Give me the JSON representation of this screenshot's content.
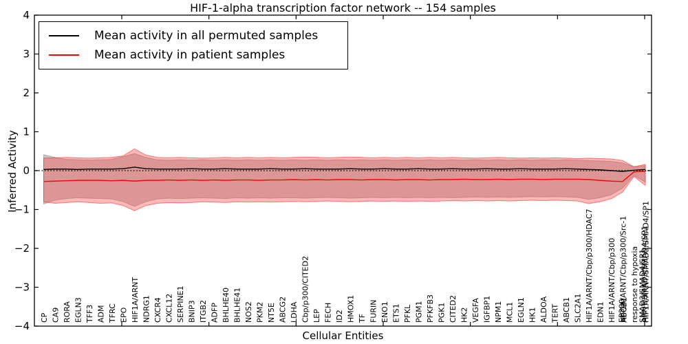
{
  "header": {
    "title": "HIF-1-alpha transcription factor network -- 154 samples"
  },
  "axes": {
    "ylabel": "Inferred Activity",
    "xlabel": "Cellular Entities",
    "y_tick_labels": [
      "4",
      "3",
      "2",
      "1",
      "0",
      "−1",
      "−2",
      "−3",
      "−4"
    ],
    "y_tick_values": [
      4,
      3,
      2,
      1,
      0,
      -1,
      -2,
      -3,
      -4
    ]
  },
  "legend": {
    "items": [
      {
        "label": "Mean activity in all permuted samples",
        "color": "#000000"
      },
      {
        "label": "Mean activity in patient samples",
        "color": "#ff0000"
      }
    ]
  },
  "chart_data": {
    "type": "line",
    "title": "HIF-1-alpha transcription factor network -- 154 samples",
    "xlabel": "Cellular Entities",
    "ylabel": "Inferred Activity",
    "ylim": [
      -4,
      4
    ],
    "zero_reference_line": true,
    "grid": false,
    "legend_position": "upper left",
    "categories": [
      "CP",
      "CA9",
      "RORA",
      "EGLN3",
      "TFF3",
      "ADM",
      "TFRC",
      "EPO",
      "HIF1A/ARNT",
      "NDRG1",
      "CXCR4",
      "CXCL12",
      "SERPINE1",
      "BNIP3",
      "ITGB2",
      "ADFP",
      "BHLHE40",
      "BHLHE41",
      "NOS2",
      "PKM2",
      "NT5E",
      "ABCG2",
      "LDHA",
      "Cbp/p300/CITED2",
      "LEP",
      "FECH",
      "ID2",
      "HMOX1",
      "TF",
      "FURIN",
      "ENO1",
      "ETS1",
      "PFKL",
      "PGM1",
      "PFKFB3",
      "PGK1",
      "CITED2",
      "HK2",
      "VEGFA",
      "IGFBP1",
      "NPM1",
      "MCL1",
      "EGLN1",
      "HK1",
      "ALDOA",
      "TERT",
      "ABCB1",
      "SLC2A1",
      "HIF1A/ARNT/Cbp/p300/HDAC7",
      "EDN1",
      "HIF1A/ARNT/Cbp/p300",
      "HIF1A/ARNT/Cbp/p300/Src-1",
      "response to hypoxia",
      "HIF1A/ARNT/SMAD3/SMAD4/SP1"
    ],
    "overprint_labels": [
      {
        "index": 51,
        "dx": -2,
        "labels": [
          "EP300",
          "ABCB1"
        ]
      },
      {
        "index": 53,
        "dx": -5,
        "labels": [
          "SMAD3/SMAD4/SP1",
          "ARNT/SMAD3/SMAD4/SP1"
        ]
      }
    ],
    "series": [
      {
        "name": "Mean activity in all permuted samples",
        "color": "#000000",
        "values": [
          0.03,
          0.04,
          0.04,
          0.03,
          0.04,
          0.04,
          0.04,
          0.05,
          0.09,
          0.05,
          0.04,
          0.04,
          0.04,
          0.05,
          0.04,
          0.04,
          0.05,
          0.04,
          0.04,
          0.04,
          0.05,
          0.04,
          0.04,
          0.05,
          0.04,
          0.04,
          0.04,
          0.05,
          0.04,
          0.04,
          0.05,
          0.04,
          0.04,
          0.05,
          0.04,
          0.04,
          0.05,
          0.04,
          0.04,
          0.05,
          0.04,
          0.04,
          0.05,
          0.04,
          0.04,
          0.04,
          0.05,
          0.04,
          0.03,
          0.02,
          0.0,
          -0.02,
          0.01,
          0.03
        ]
      },
      {
        "name": "Mean activity in patient samples",
        "color": "#ff0000",
        "values": [
          -0.28,
          -0.27,
          -0.26,
          -0.25,
          -0.25,
          -0.25,
          -0.26,
          -0.25,
          -0.27,
          -0.25,
          -0.25,
          -0.24,
          -0.25,
          -0.24,
          -0.25,
          -0.24,
          -0.25,
          -0.24,
          -0.24,
          -0.25,
          -0.24,
          -0.24,
          -0.23,
          -0.24,
          -0.23,
          -0.24,
          -0.23,
          -0.23,
          -0.24,
          -0.23,
          -0.23,
          -0.24,
          -0.23,
          -0.23,
          -0.24,
          -0.23,
          -0.23,
          -0.22,
          -0.23,
          -0.23,
          -0.22,
          -0.23,
          -0.22,
          -0.22,
          -0.23,
          -0.22,
          -0.22,
          -0.22,
          -0.23,
          -0.25,
          -0.27,
          -0.28,
          -0.03,
          -0.02
        ]
      }
    ],
    "bands": [
      {
        "name": "permuted samples range",
        "fill": "rgba(130,130,130,0.45)",
        "stroke": "rgba(120,120,120,0.5)",
        "top": [
          0.41,
          0.34,
          0.29,
          0.28,
          0.27,
          0.28,
          0.29,
          0.36,
          0.44,
          0.34,
          0.28,
          0.27,
          0.28,
          0.27,
          0.28,
          0.27,
          0.28,
          0.27,
          0.28,
          0.27,
          0.28,
          0.27,
          0.28,
          0.27,
          0.28,
          0.27,
          0.28,
          0.27,
          0.28,
          0.27,
          0.28,
          0.27,
          0.28,
          0.27,
          0.28,
          0.27,
          0.28,
          0.27,
          0.28,
          0.27,
          0.28,
          0.27,
          0.28,
          0.27,
          0.28,
          0.27,
          0.28,
          0.27,
          0.26,
          0.25,
          0.24,
          0.2,
          0.1,
          0.13
        ],
        "bottom": [
          -0.86,
          -0.76,
          -0.72,
          -0.7,
          -0.71,
          -0.72,
          -0.73,
          -0.8,
          -0.92,
          -0.8,
          -0.73,
          -0.71,
          -0.72,
          -0.71,
          -0.7,
          -0.71,
          -0.72,
          -0.7,
          -0.71,
          -0.7,
          -0.71,
          -0.7,
          -0.7,
          -0.71,
          -0.7,
          -0.69,
          -0.7,
          -0.71,
          -0.7,
          -0.69,
          -0.7,
          -0.69,
          -0.7,
          -0.69,
          -0.7,
          -0.69,
          -0.7,
          -0.69,
          -0.68,
          -0.69,
          -0.68,
          -0.69,
          -0.68,
          -0.67,
          -0.68,
          -0.67,
          -0.68,
          -0.69,
          -0.74,
          -0.7,
          -0.62,
          -0.45,
          -0.12,
          -0.3
        ]
      },
      {
        "name": "patient samples range",
        "fill": "rgba(255,70,70,0.38)",
        "stroke": "rgba(255,30,30,0.55)",
        "top": [
          0.32,
          0.33,
          0.34,
          0.33,
          0.32,
          0.33,
          0.34,
          0.38,
          0.56,
          0.4,
          0.34,
          0.33,
          0.34,
          0.33,
          0.32,
          0.33,
          0.34,
          0.33,
          0.34,
          0.33,
          0.34,
          0.33,
          0.34,
          0.35,
          0.34,
          0.33,
          0.34,
          0.35,
          0.34,
          0.33,
          0.34,
          0.33,
          0.34,
          0.33,
          0.34,
          0.33,
          0.34,
          0.33,
          0.32,
          0.33,
          0.34,
          0.33,
          0.32,
          0.33,
          0.32,
          0.33,
          0.32,
          0.31,
          0.32,
          0.31,
          0.3,
          0.26,
          0.1,
          0.16
        ],
        "bottom": [
          -0.8,
          -0.84,
          -0.82,
          -0.8,
          -0.82,
          -0.84,
          -0.83,
          -0.9,
          -1.03,
          -0.9,
          -0.84,
          -0.82,
          -0.83,
          -0.82,
          -0.8,
          -0.81,
          -0.82,
          -0.8,
          -0.81,
          -0.8,
          -0.81,
          -0.8,
          -0.79,
          -0.8,
          -0.79,
          -0.78,
          -0.79,
          -0.8,
          -0.79,
          -0.78,
          -0.79,
          -0.78,
          -0.79,
          -0.78,
          -0.79,
          -0.78,
          -0.77,
          -0.78,
          -0.77,
          -0.78,
          -0.77,
          -0.78,
          -0.77,
          -0.76,
          -0.77,
          -0.76,
          -0.77,
          -0.78,
          -0.85,
          -0.8,
          -0.72,
          -0.55,
          -0.15,
          -0.38
        ]
      }
    ]
  }
}
